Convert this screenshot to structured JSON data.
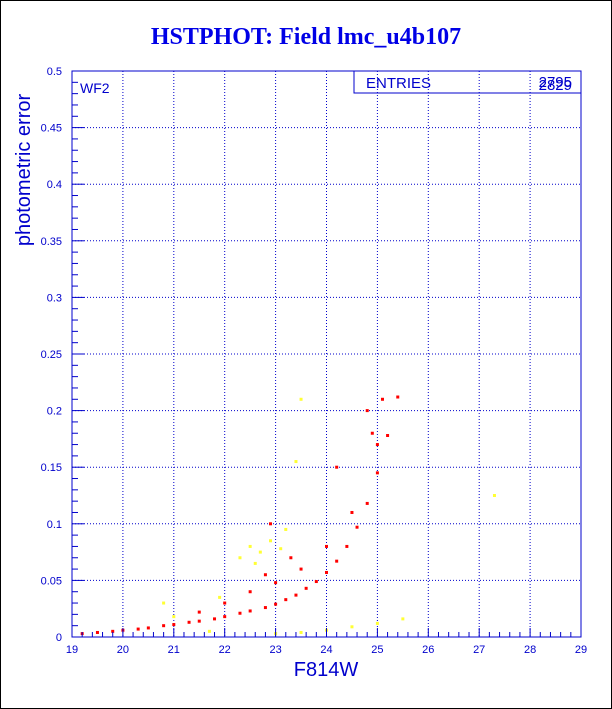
{
  "title": "HSTPHOT: Field lmc_u4b107",
  "chart_data": {
    "type": "scatter",
    "xlabel": "F814W",
    "ylabel": "photometric error",
    "xlim": [
      19,
      29
    ],
    "ylim": [
      0,
      0.5
    ],
    "x_ticks": [
      "19",
      "20",
      "21",
      "22",
      "23",
      "24",
      "25",
      "26",
      "27",
      "28",
      "29"
    ],
    "y_ticks": [
      "0",
      "0.05",
      "0.1",
      "0.15",
      "0.2",
      "0.25",
      "0.3",
      "0.35",
      "0.4",
      "0.45",
      "0.5"
    ],
    "grid": true,
    "panel_label": "WF2",
    "stats_box": {
      "label": "ENTRIES",
      "value_1": "2795",
      "value_2": "2829"
    },
    "colors": {
      "axis": "#0000cc",
      "grid": "#0000cc",
      "main_series": "#ff0000",
      "secondary_series": "#ffff33",
      "title": "#0000e6"
    },
    "series": [
      {
        "color": "red",
        "values_xy": [
          [
            19.2,
            0.003
          ],
          [
            19.5,
            0.004
          ],
          [
            19.8,
            0.005
          ],
          [
            20.0,
            0.006
          ],
          [
            20.3,
            0.007
          ],
          [
            20.5,
            0.008
          ],
          [
            20.8,
            0.01
          ],
          [
            21.0,
            0.011
          ],
          [
            21.3,
            0.013
          ],
          [
            21.5,
            0.014
          ],
          [
            21.8,
            0.016
          ],
          [
            22.0,
            0.018
          ],
          [
            22.3,
            0.021
          ],
          [
            22.5,
            0.023
          ],
          [
            22.8,
            0.026
          ],
          [
            23.0,
            0.029
          ],
          [
            23.2,
            0.033
          ],
          [
            23.4,
            0.037
          ],
          [
            23.6,
            0.043
          ],
          [
            23.8,
            0.049
          ],
          [
            24.0,
            0.057
          ],
          [
            24.2,
            0.067
          ],
          [
            24.4,
            0.08
          ],
          [
            24.6,
            0.097
          ],
          [
            24.8,
            0.118
          ],
          [
            25.0,
            0.145
          ],
          [
            25.2,
            0.178
          ],
          [
            25.4,
            0.212
          ],
          [
            22.0,
            0.03
          ],
          [
            22.5,
            0.04
          ],
          [
            23.0,
            0.048
          ],
          [
            23.5,
            0.06
          ],
          [
            24.0,
            0.08
          ],
          [
            24.5,
            0.11
          ],
          [
            25.0,
            0.17
          ],
          [
            21.5,
            0.022
          ],
          [
            22.8,
            0.055
          ],
          [
            23.3,
            0.07
          ],
          [
            22.9,
            0.1
          ],
          [
            24.2,
            0.15
          ],
          [
            24.8,
            0.2
          ],
          [
            25.1,
            0.21
          ],
          [
            24.9,
            0.18
          ]
        ]
      },
      {
        "color": "yellow",
        "values_xy": [
          [
            22.5,
            0.08
          ],
          [
            22.7,
            0.075
          ],
          [
            22.9,
            0.085
          ],
          [
            23.1,
            0.078
          ],
          [
            22.6,
            0.065
          ],
          [
            23.2,
            0.095
          ],
          [
            22.3,
            0.07
          ],
          [
            20.8,
            0.03
          ],
          [
            21.9,
            0.035
          ],
          [
            23.4,
            0.155
          ],
          [
            23.5,
            0.21
          ],
          [
            27.3,
            0.125
          ],
          [
            23.0,
            0.003
          ],
          [
            23.5,
            0.004
          ],
          [
            24.0,
            0.006
          ],
          [
            24.5,
            0.009
          ],
          [
            25.0,
            0.012
          ],
          [
            25.5,
            0.016
          ],
          [
            21.7,
            0.005
          ],
          [
            21.0,
            0.018
          ]
        ]
      }
    ]
  }
}
